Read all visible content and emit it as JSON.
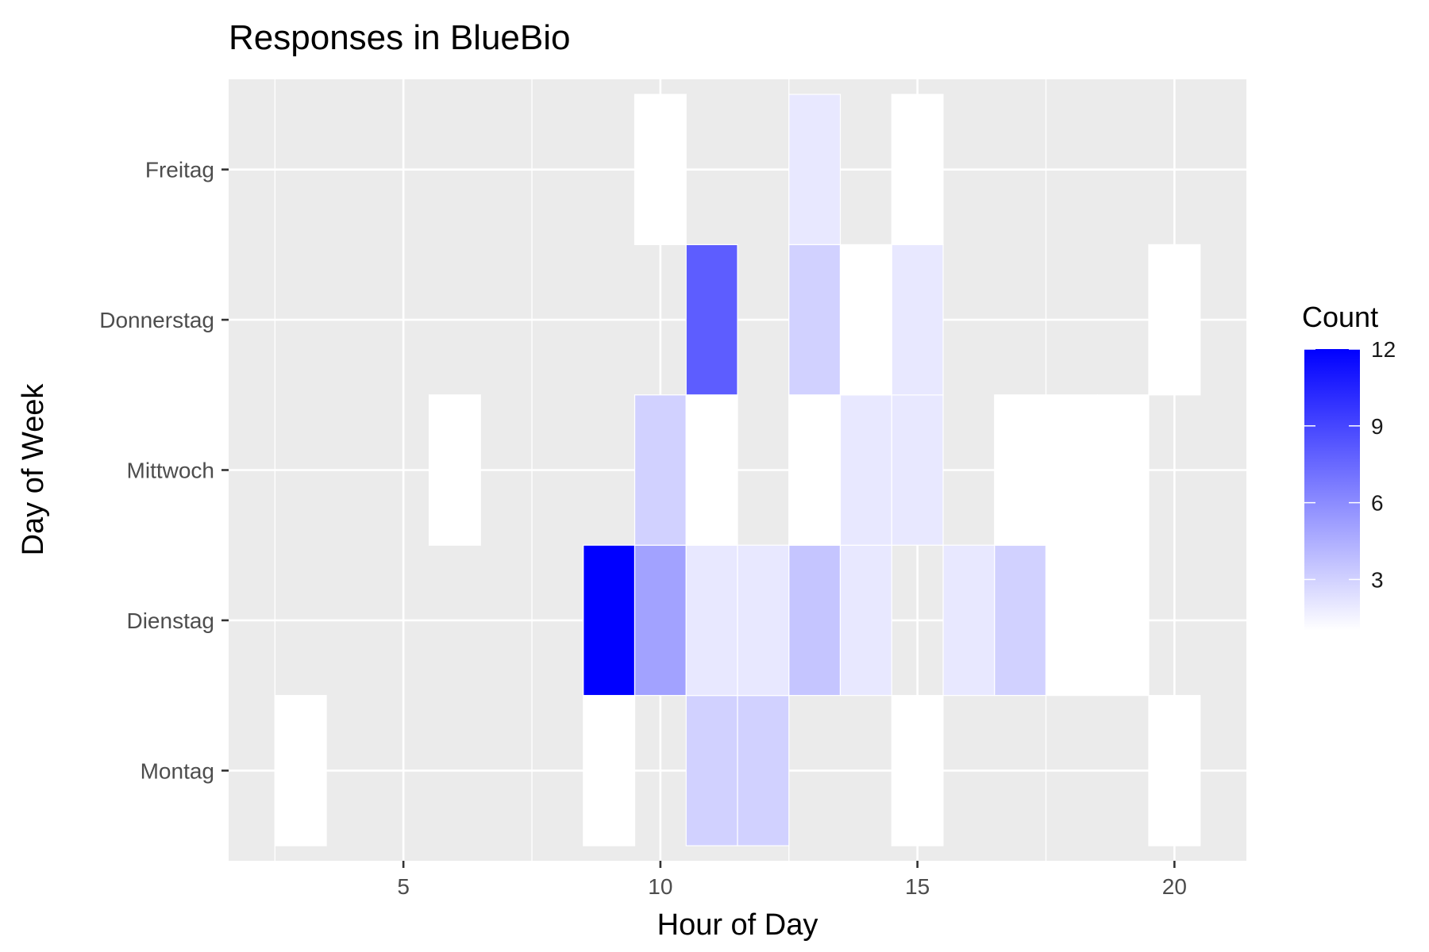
{
  "chart_data": {
    "type": "heatmap",
    "title": "Responses in BlueBio",
    "xlabel": "Hour of Day",
    "ylabel": "Day of Week",
    "xlim": [
      1.6,
      21.4
    ],
    "x_ticks": [
      5,
      10,
      15,
      20
    ],
    "y_categories": [
      "Montag",
      "Dienstag",
      "Mittwoch",
      "Donnerstag",
      "Freitag"
    ],
    "legend": {
      "title": "Count",
      "ticks": [
        3,
        6,
        9,
        12
      ],
      "min": 1,
      "max": 12,
      "low_color": "#FFFFFF",
      "high_color": "#0000FF",
      "placement": "right"
    },
    "grid": true,
    "background_color": "#EBEBEB",
    "cells": [
      {
        "day": "Montag",
        "hour": 3,
        "count": 1
      },
      {
        "day": "Montag",
        "hour": 9,
        "count": 1
      },
      {
        "day": "Montag",
        "hour": 11,
        "count": 3
      },
      {
        "day": "Montag",
        "hour": 12,
        "count": 3
      },
      {
        "day": "Montag",
        "hour": 15,
        "count": 1
      },
      {
        "day": "Montag",
        "hour": 20,
        "count": 1
      },
      {
        "day": "Dienstag",
        "hour": 9,
        "count": 12
      },
      {
        "day": "Dienstag",
        "hour": 10,
        "count": 5
      },
      {
        "day": "Dienstag",
        "hour": 11,
        "count": 2
      },
      {
        "day": "Dienstag",
        "hour": 12,
        "count": 2
      },
      {
        "day": "Dienstag",
        "hour": 13,
        "count": 3.5
      },
      {
        "day": "Dienstag",
        "hour": 14,
        "count": 2
      },
      {
        "day": "Dienstag",
        "hour": 16,
        "count": 2
      },
      {
        "day": "Dienstag",
        "hour": 17,
        "count": 3
      },
      {
        "day": "Dienstag",
        "hour": 18,
        "count": 1
      },
      {
        "day": "Dienstag",
        "hour": 19,
        "count": 1
      },
      {
        "day": "Mittwoch",
        "hour": 6,
        "count": 1
      },
      {
        "day": "Mittwoch",
        "hour": 10,
        "count": 3
      },
      {
        "day": "Mittwoch",
        "hour": 11,
        "count": 1
      },
      {
        "day": "Mittwoch",
        "hour": 13,
        "count": 1
      },
      {
        "day": "Mittwoch",
        "hour": 14,
        "count": 2
      },
      {
        "day": "Mittwoch",
        "hour": 15,
        "count": 2
      },
      {
        "day": "Mittwoch",
        "hour": 17,
        "count": 1
      },
      {
        "day": "Mittwoch",
        "hour": 18,
        "count": 1
      },
      {
        "day": "Mittwoch",
        "hour": 19,
        "count": 1
      },
      {
        "day": "Donnerstag",
        "hour": 11,
        "count": 8
      },
      {
        "day": "Donnerstag",
        "hour": 13,
        "count": 3
      },
      {
        "day": "Donnerstag",
        "hour": 14,
        "count": 1
      },
      {
        "day": "Donnerstag",
        "hour": 15,
        "count": 2
      },
      {
        "day": "Donnerstag",
        "hour": 20,
        "count": 1
      },
      {
        "day": "Freitag",
        "hour": 10,
        "count": 1
      },
      {
        "day": "Freitag",
        "hour": 13,
        "count": 2
      },
      {
        "day": "Freitag",
        "hour": 15,
        "count": 1
      }
    ]
  }
}
